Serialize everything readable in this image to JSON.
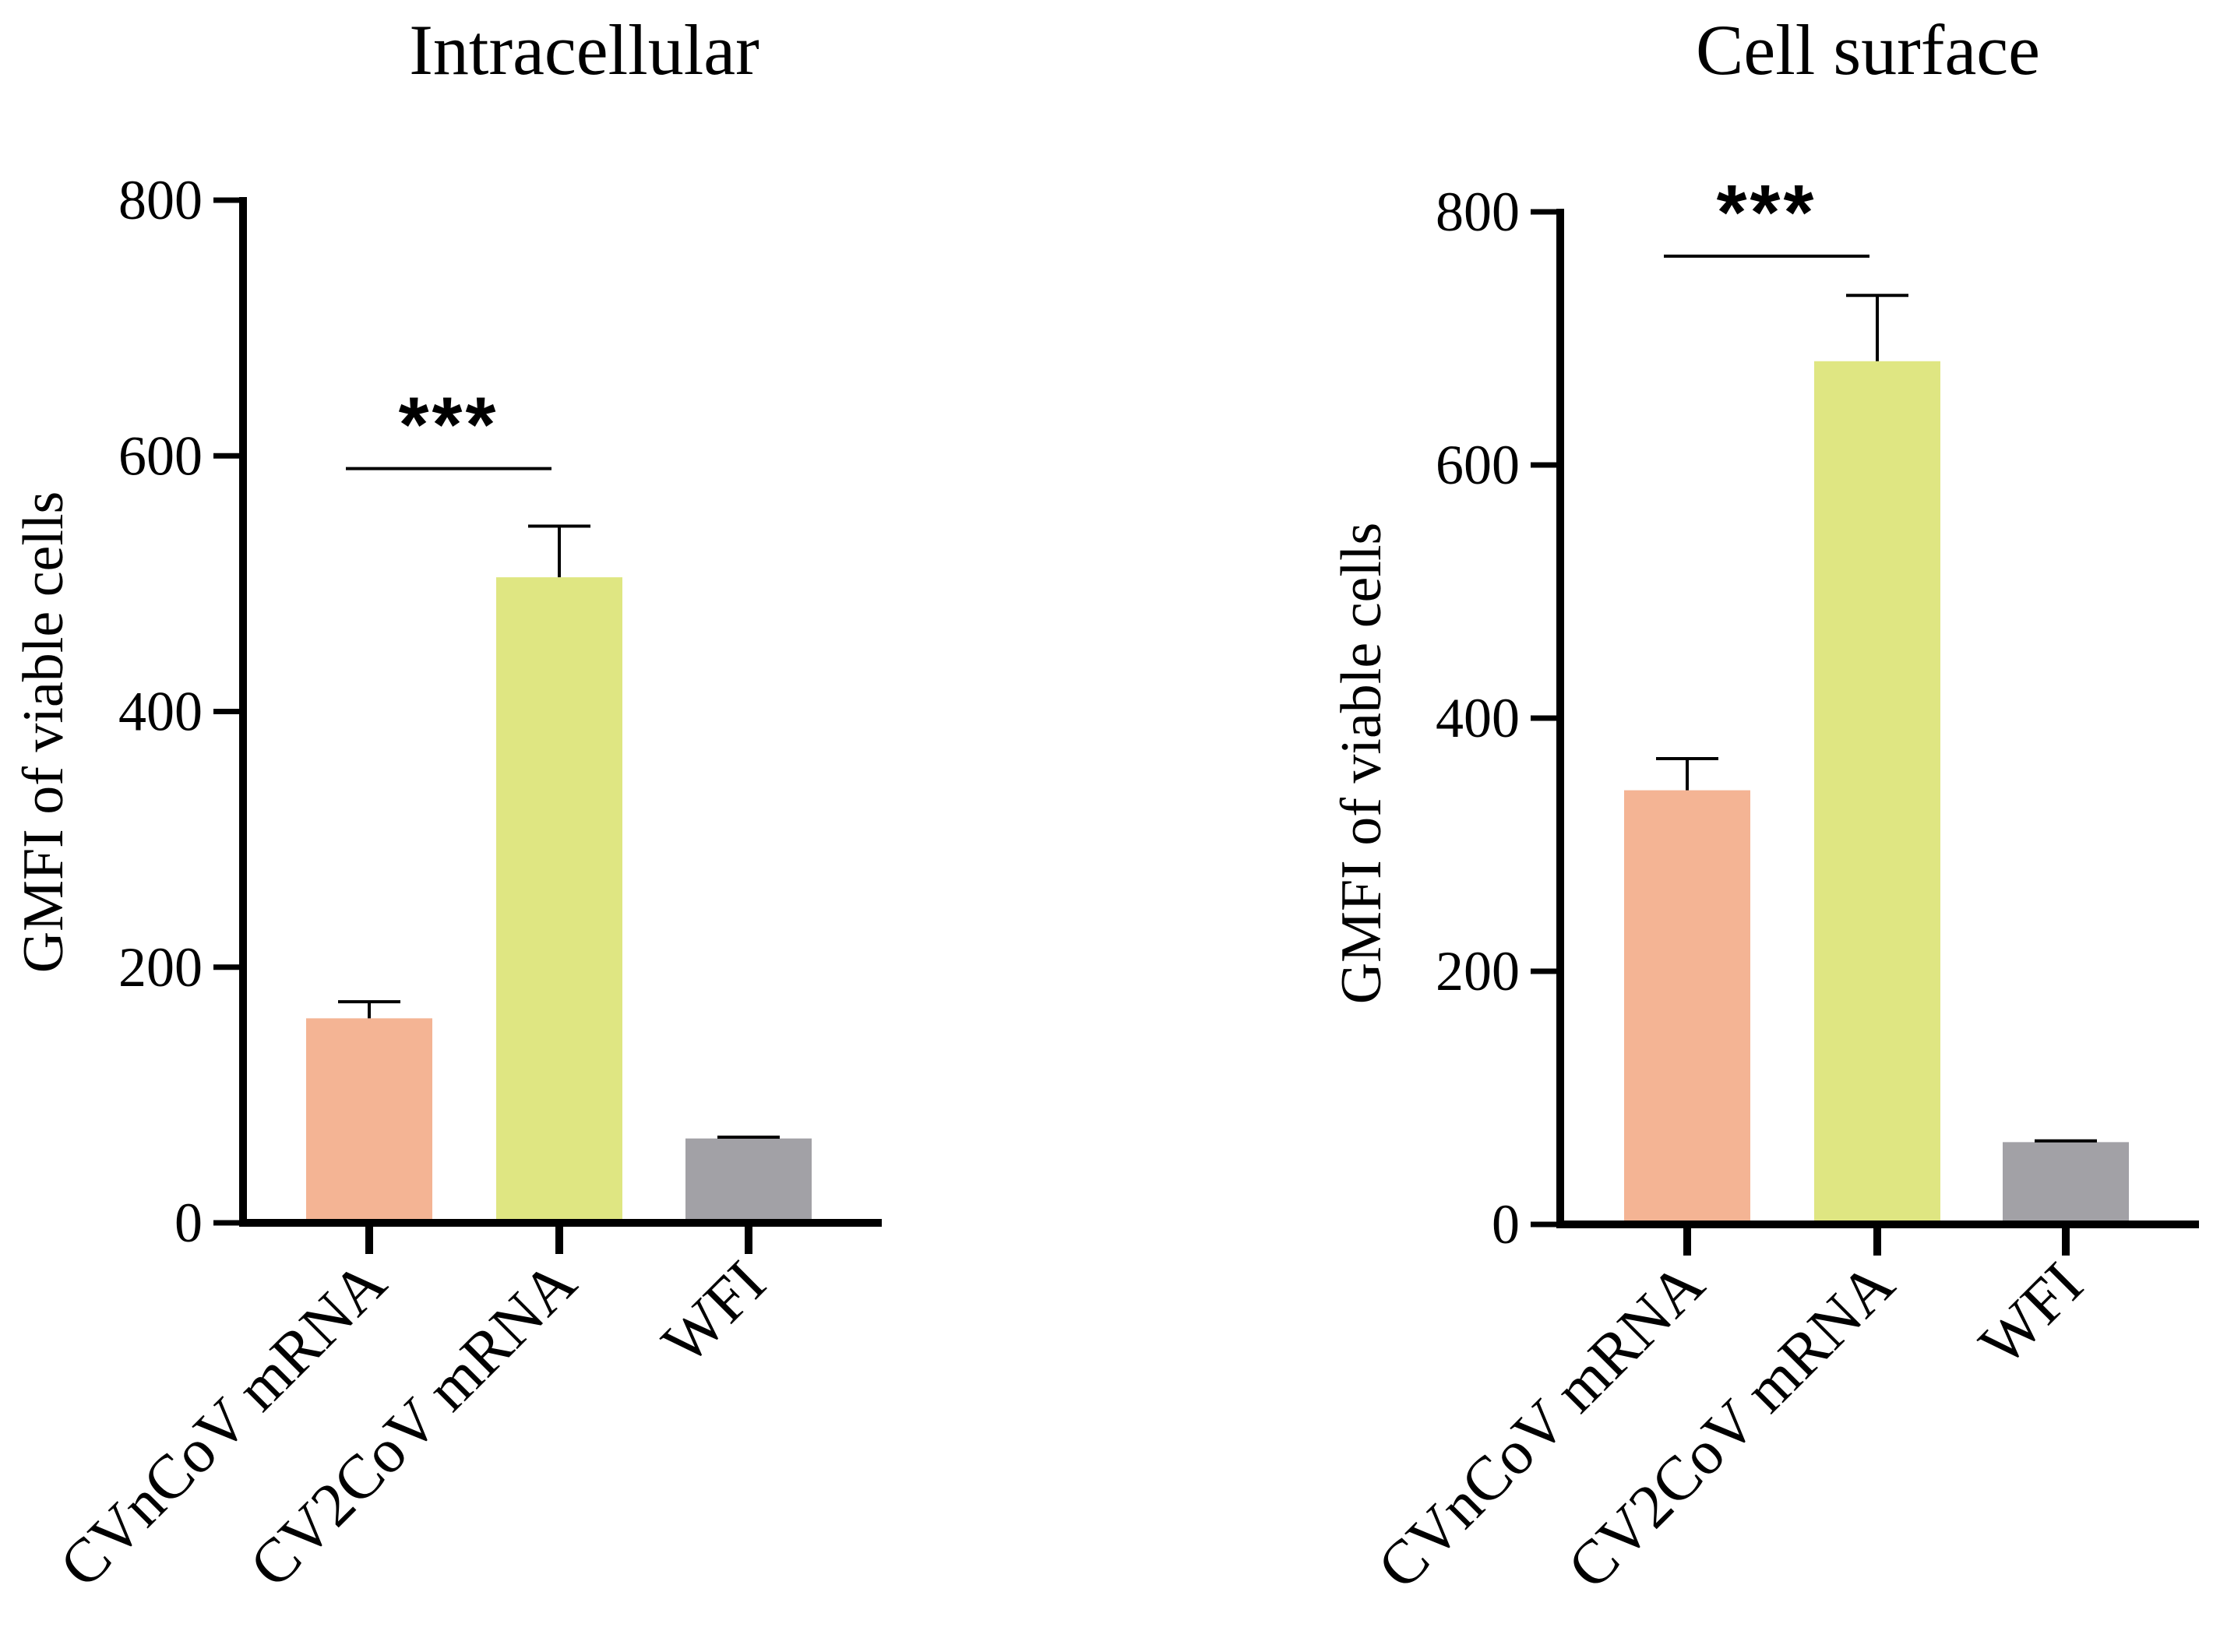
{
  "colors": {
    "axis": "#000000",
    "bar_colors": [
      "#f4b494",
      "#dfe682",
      "#a2a1a6"
    ]
  },
  "chart_data": [
    {
      "type": "bar",
      "title": "Intracellular",
      "ylabel": "GMFI of viable cells",
      "xlabel": "",
      "ylim": [
        0,
        800
      ],
      "yticks": [
        "0",
        "200",
        "400",
        "600",
        "800"
      ],
      "categories": [
        "CVnCoV mRNA",
        "CV2CoV mRNA",
        "WFI"
      ],
      "values": [
        160,
        505,
        66
      ],
      "errors": [
        13,
        40,
        1
      ],
      "significance": [
        {
          "from": 0,
          "to": 1,
          "label": "***",
          "y": 590
        }
      ]
    },
    {
      "type": "bar",
      "title": "Cell surface",
      "ylabel": "GMFI of viable cells",
      "xlabel": "",
      "ylim": [
        0,
        800
      ],
      "yticks": [
        "0",
        "200",
        "400",
        "600",
        "800"
      ],
      "categories": [
        "CVnCoV mRNA",
        "CV2CoV mRNA",
        "WFI"
      ],
      "values": [
        343,
        682,
        65
      ],
      "errors": [
        25,
        52,
        1
      ],
      "significance": [
        {
          "from": 0,
          "to": 1,
          "label": "***",
          "y": 765
        }
      ]
    }
  ]
}
